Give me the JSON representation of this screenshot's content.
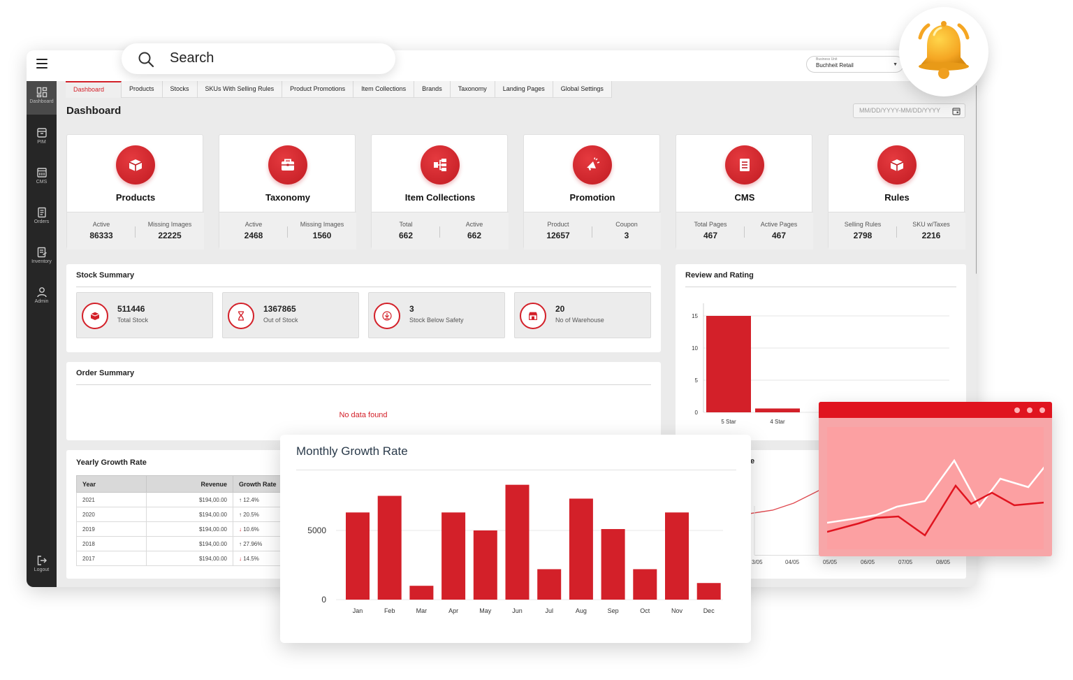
{
  "search": {
    "label": "Search"
  },
  "header": {
    "business_unit_label": "Business Unit",
    "business_unit_value": "Buchheit Retail"
  },
  "sidebar": {
    "items": [
      {
        "label": "Dashboard",
        "icon": "dashboard-icon"
      },
      {
        "label": "PIM",
        "icon": "box-icon"
      },
      {
        "label": "CMS",
        "icon": "cms-icon"
      },
      {
        "label": "Orders",
        "icon": "orders-icon"
      },
      {
        "label": "Inventory",
        "icon": "inventory-icon"
      },
      {
        "label": "Admin",
        "icon": "user-icon"
      },
      {
        "label": "Logout",
        "icon": "logout-icon"
      }
    ]
  },
  "tabs": [
    "Dashboard",
    "Products",
    "Stocks",
    "SKUs With Selling Rules",
    "Product Promotions",
    "Item Collections",
    "Brands",
    "Taxonomy",
    "Landing Pages",
    "Global Settings"
  ],
  "page": {
    "title": "Dashboard",
    "date_placeholder": "MM/DD/YYYY-MM/DD/YYYY"
  },
  "cards": [
    {
      "name": "Products",
      "icon": "box-icon",
      "k1": "Active",
      "v1": "86333",
      "k2": "Missing Images",
      "v2": "22225"
    },
    {
      "name": "Taxonomy",
      "icon": "briefcase-icon",
      "k1": "Active",
      "v1": "2468",
      "k2": "Missing Images",
      "v2": "1560"
    },
    {
      "name": "Item Collections",
      "icon": "hierarchy-icon",
      "k1": "Total",
      "v1": "662",
      "k2": "Active",
      "v2": "662"
    },
    {
      "name": "Promotion",
      "icon": "megaphone-icon",
      "k1": "Product",
      "v1": "12657",
      "k2": "Coupon",
      "v2": "3"
    },
    {
      "name": "CMS",
      "icon": "document-icon",
      "k1": "Total Pages",
      "v1": "467",
      "k2": "Active Pages",
      "v2": "467"
    },
    {
      "name": "Rules",
      "icon": "box-icon",
      "k1": "Selling Rules",
      "v1": "2798",
      "k2": "SKU w/Taxes",
      "v2": "2216"
    }
  ],
  "stock_summary": {
    "title": "Stock Summary",
    "items": [
      {
        "value": "511446",
        "label": "Total Stock",
        "icon": "box-icon"
      },
      {
        "value": "1367865",
        "label": "Out of Stock",
        "icon": "hourglass-icon"
      },
      {
        "value": "3",
        "label": "Stock Below Safety",
        "icon": "download-icon"
      },
      {
        "value": "20",
        "label": "No of Warehouse",
        "icon": "store-icon"
      }
    ]
  },
  "order_summary": {
    "title": "Order Summary",
    "empty": "No data found"
  },
  "yearly_growth": {
    "title": "Yearly Growth Rate",
    "headers": [
      "Year",
      "Revenue",
      "Growth Rate"
    ],
    "rows": [
      {
        "year": "2021",
        "revenue": "$194,00.00",
        "rate": "12.4%",
        "dir": "up"
      },
      {
        "year": "2020",
        "revenue": "$194,00.00",
        "rate": "20.5%",
        "dir": "up"
      },
      {
        "year": "2019",
        "revenue": "$194,00.00",
        "rate": "10.6%",
        "dir": "down"
      },
      {
        "year": "2018",
        "revenue": "$194,00.00",
        "rate": "27.96%",
        "dir": "up"
      },
      {
        "year": "2017",
        "revenue": "$194,00.00",
        "rate": "14.5%",
        "dir": "down"
      }
    ]
  },
  "partial_panel": {
    "title_fragment": "e",
    "x_labels": [
      "3/05",
      "04/05",
      "05/05",
      "06/05",
      "07/05",
      "08/05"
    ]
  },
  "colors": {
    "accent": "#d32029",
    "sidebar": "#262626",
    "background": "#ebebeb"
  },
  "chart_data": [
    {
      "type": "bar",
      "title": "Review and Rating",
      "categories": [
        "5 Star",
        "4 Star"
      ],
      "values": [
        15,
        0.6
      ],
      "ylim": [
        0,
        15
      ],
      "yticks": [
        0,
        5,
        10,
        15
      ],
      "grid": true
    },
    {
      "type": "bar",
      "title": "Monthly Growth Rate",
      "categories": [
        "Jan",
        "Feb",
        "Mar",
        "Apr",
        "May",
        "Jun",
        "Jul",
        "Aug",
        "Sep",
        "Oct",
        "Nov",
        "Dec"
      ],
      "values": [
        6300,
        7500,
        1000,
        6300,
        5000,
        8300,
        2200,
        7300,
        5100,
        2200,
        6300,
        1200
      ],
      "yticks": [
        0,
        5000
      ],
      "ylim": [
        0,
        8500
      ],
      "grid": true
    }
  ]
}
